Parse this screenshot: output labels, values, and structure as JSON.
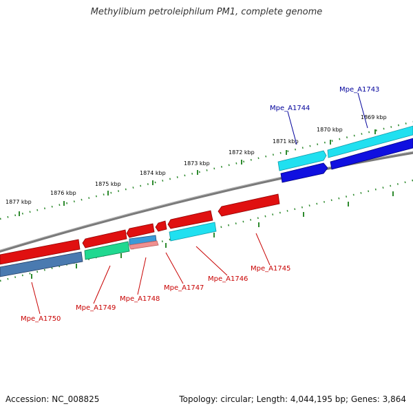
{
  "title": "Methylibium petroleiphilum PM1, complete genome",
  "footer": {
    "accession": "Accession: NC_008825",
    "summary": "Topology: circular; Length: 4,044,195 bp; Genes: 3,864"
  },
  "colors": {
    "backbone": "#7a7a7a",
    "tick": "#2d8a2d",
    "forward_label": "#00009b",
    "reverse_label": "#c80000",
    "red": "#e01010",
    "cyan": "#20e0f0",
    "blue": "#1010e0",
    "green": "#20d890",
    "steelblue": "#4a7ab0",
    "pink": "#f09090"
  },
  "tick_labels": [
    "1869 kbp",
    "1870 kbp",
    "1871 kbp",
    "1872 kbp",
    "1873 kbp",
    "1874 kbp",
    "1875 kbp",
    "1876 kbp",
    "1877 kbp"
  ],
  "gene_labels": [
    {
      "id": "mpe-a1743",
      "text": "Mpe_A1743",
      "strand": "forward"
    },
    {
      "id": "mpe-a1744",
      "text": "Mpe_A1744",
      "strand": "forward"
    },
    {
      "id": "mpe-a1745",
      "text": "Mpe_A1745",
      "strand": "reverse"
    },
    {
      "id": "mpe-a1746",
      "text": "Mpe_A1746",
      "strand": "reverse"
    },
    {
      "id": "mpe-a1747",
      "text": "Mpe_A1747",
      "strand": "reverse"
    },
    {
      "id": "mpe-a1748",
      "text": "Mpe_A1748",
      "strand": "reverse"
    },
    {
      "id": "mpe-a1749",
      "text": "Mpe_A1749",
      "strand": "reverse"
    },
    {
      "id": "mpe-a1750",
      "text": "Mpe_A1750",
      "strand": "reverse"
    }
  ]
}
